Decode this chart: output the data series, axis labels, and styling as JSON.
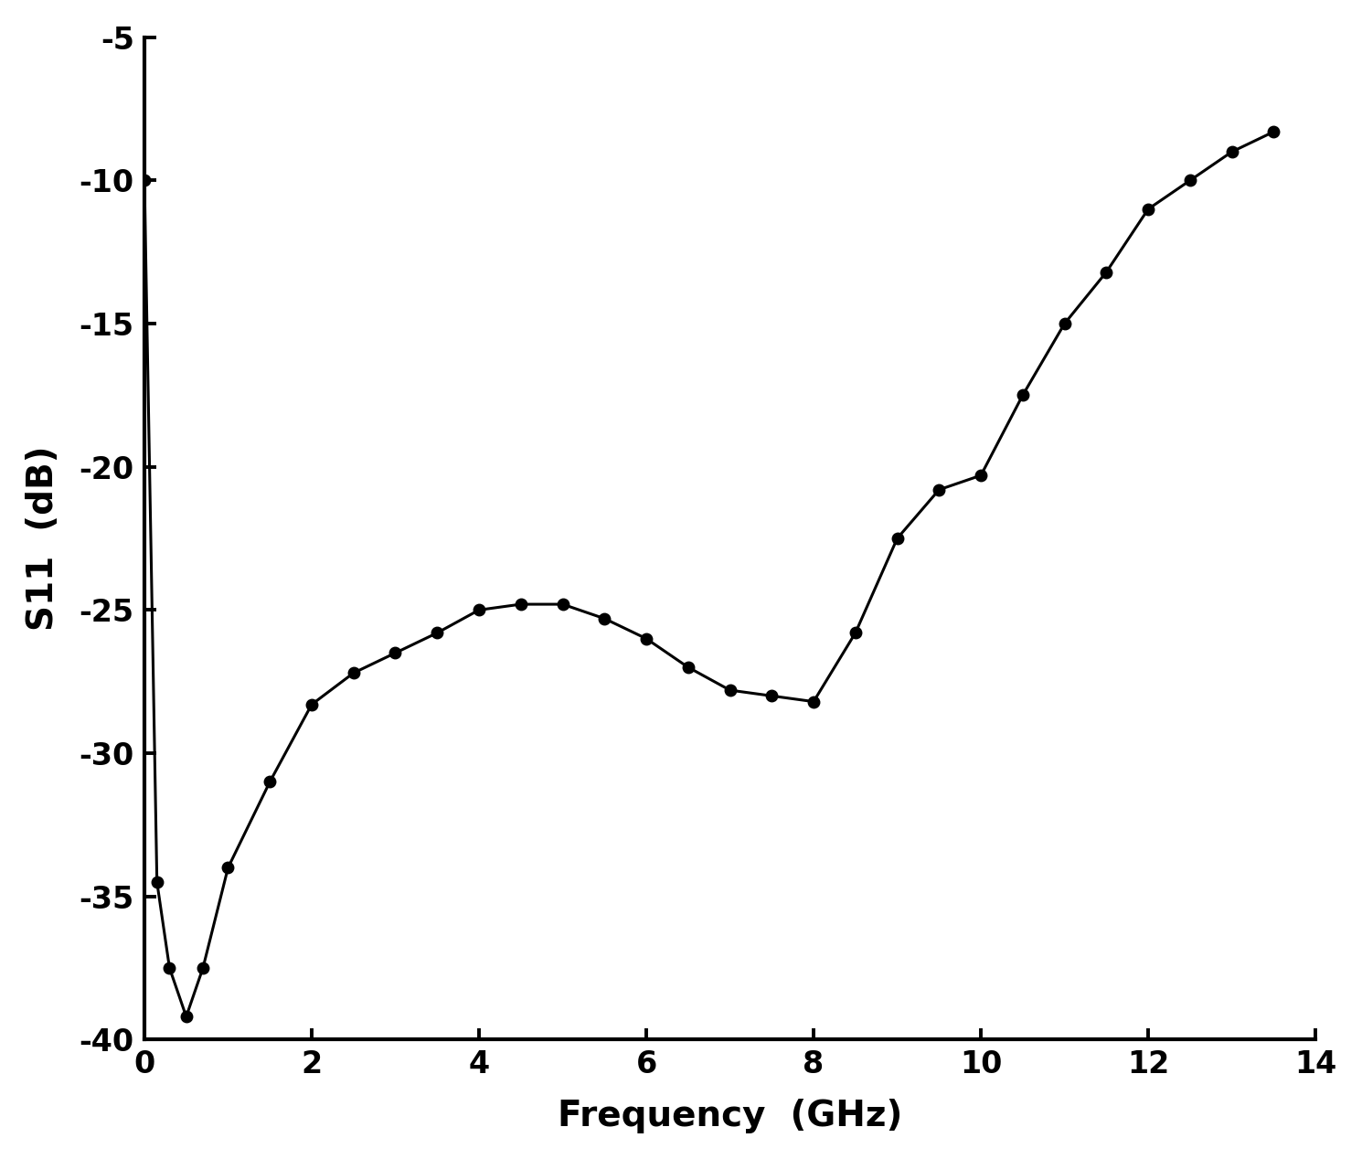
{
  "x": [
    0.0,
    0.15,
    0.3,
    0.5,
    0.7,
    1.0,
    1.5,
    2.0,
    2.5,
    3.0,
    3.5,
    4.0,
    4.5,
    5.0,
    5.5,
    6.0,
    6.5,
    7.0,
    7.5,
    8.0,
    8.5,
    9.0,
    9.5,
    10.0,
    10.5,
    11.0,
    11.5,
    12.0,
    12.5,
    13.0,
    13.5
  ],
  "y": [
    -10.0,
    -34.5,
    -37.5,
    -39.2,
    -37.5,
    -34.0,
    -31.0,
    -28.3,
    -27.2,
    -26.5,
    -25.8,
    -25.0,
    -24.8,
    -24.8,
    -25.3,
    -26.0,
    -27.0,
    -27.8,
    -28.0,
    -28.2,
    -25.8,
    -22.5,
    -20.8,
    -20.3,
    -17.5,
    -15.0,
    -13.2,
    -11.0,
    -10.0,
    -9.0,
    -8.3
  ],
  "xlabel": "Frequency  (GHz)",
  "ylabel": "S11  (dB)",
  "xlim": [
    0,
    14
  ],
  "ylim": [
    -40,
    -5
  ],
  "xticks": [
    0,
    2,
    4,
    6,
    8,
    10,
    12,
    14
  ],
  "yticks": [
    -5,
    -10,
    -15,
    -20,
    -25,
    -30,
    -35,
    -40
  ],
  "line_color": "#000000",
  "marker_color": "#000000",
  "bg_color": "#ffffff",
  "linewidth": 2.2,
  "markersize": 9,
  "tick_fontsize": 24,
  "label_fontsize": 28,
  "figure_width": 14.9,
  "figure_height": 12.68,
  "dpi": 100
}
